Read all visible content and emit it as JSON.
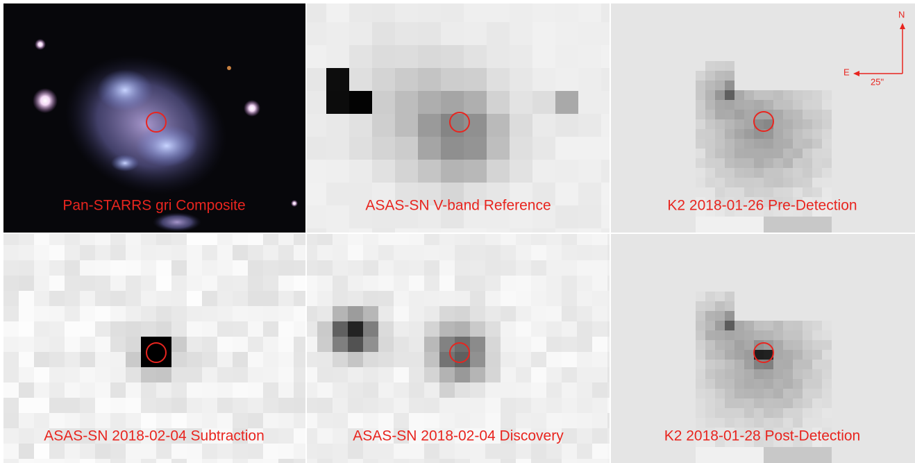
{
  "panels": [
    {
      "label": "Pan-STARRS gri Composite"
    },
    {
      "label": "ASAS-SN V-band Reference"
    },
    {
      "label": "K2 2018-01-26 Pre-Detection"
    },
    {
      "label": "ASAS-SN 2018-02-04 Subtraction"
    },
    {
      "label": "ASAS-SN 2018-02-04 Discovery"
    },
    {
      "label": "K2 2018-01-28 Post-Detection"
    }
  ],
  "compass": {
    "north": "N",
    "east": "E",
    "scale": "25\""
  }
}
